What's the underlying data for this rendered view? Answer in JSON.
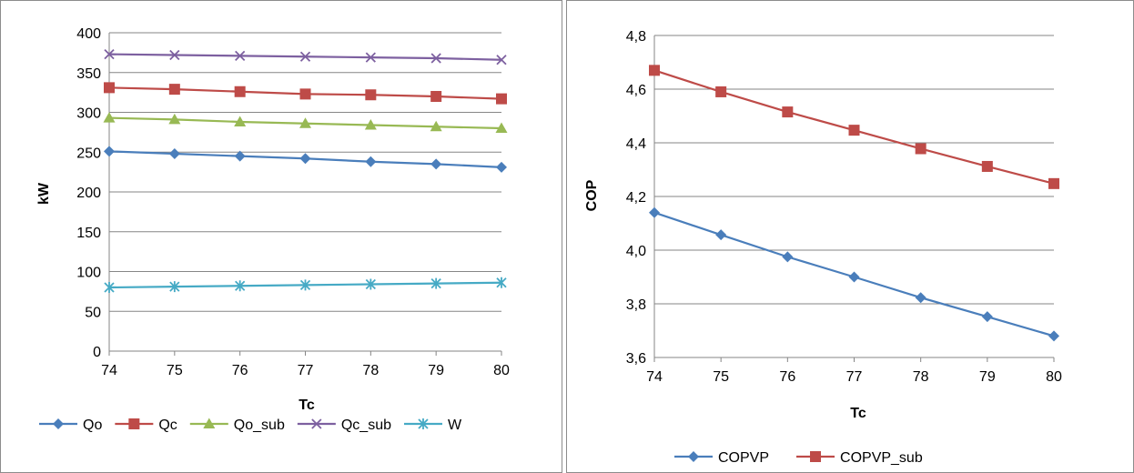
{
  "chart_data": [
    {
      "type": "line",
      "title": "",
      "xlabel": "Tc",
      "ylabel": "kW",
      "x": [
        74,
        75,
        76,
        77,
        78,
        79,
        80
      ],
      "xlim": [
        74,
        80
      ],
      "ylim": [
        0,
        400
      ],
      "yticks": [
        "0",
        "50",
        "100",
        "150",
        "200",
        "250",
        "300",
        "350",
        "400"
      ],
      "xticks": [
        "74",
        "75",
        "76",
        "77",
        "78",
        "79",
        "80"
      ],
      "grid": "horizontal",
      "legend": "bottom",
      "series": [
        {
          "name": "Qo",
          "color": "#4A7EBB",
          "marker": "diamond",
          "values": [
            251,
            248,
            245,
            242,
            238,
            235,
            231
          ]
        },
        {
          "name": "Qc",
          "color": "#BE4B48",
          "marker": "square",
          "values": [
            331,
            329,
            326,
            323,
            322,
            320,
            317
          ]
        },
        {
          "name": "Qo_sub",
          "color": "#98B954",
          "marker": "triangle",
          "values": [
            293,
            291,
            288,
            286,
            284,
            282,
            280
          ]
        },
        {
          "name": "Qc_sub",
          "color": "#7D60A0",
          "marker": "x",
          "values": [
            373,
            372,
            371,
            370,
            369,
            368,
            366
          ]
        },
        {
          "name": "W",
          "color": "#46AAC5",
          "marker": "star",
          "values": [
            80,
            81,
            82,
            83,
            84,
            85,
            86
          ]
        }
      ]
    },
    {
      "type": "line",
      "title": "",
      "xlabel": "Tc",
      "ylabel": "COP",
      "x": [
        74,
        75,
        76,
        77,
        78,
        79,
        80
      ],
      "xlim": [
        74,
        80
      ],
      "ylim": [
        3.6,
        4.8
      ],
      "yticks": [
        "3,6",
        "3,8",
        "4,0",
        "4,2",
        "4,4",
        "4,6",
        "4,8"
      ],
      "xticks": [
        "74",
        "75",
        "76",
        "77",
        "78",
        "79",
        "80"
      ],
      "grid": "horizontal",
      "legend": "bottom",
      "series": [
        {
          "name": "COPVP",
          "color": "#4A7EBB",
          "marker": "diamond",
          "values": [
            4.14,
            4.057,
            3.975,
            3.9,
            3.823,
            3.752,
            3.68
          ]
        },
        {
          "name": "COPVP_sub",
          "color": "#BE4B48",
          "marker": "square",
          "values": [
            4.67,
            4.59,
            4.515,
            4.447,
            4.378,
            4.312,
            4.248
          ]
        }
      ]
    }
  ]
}
